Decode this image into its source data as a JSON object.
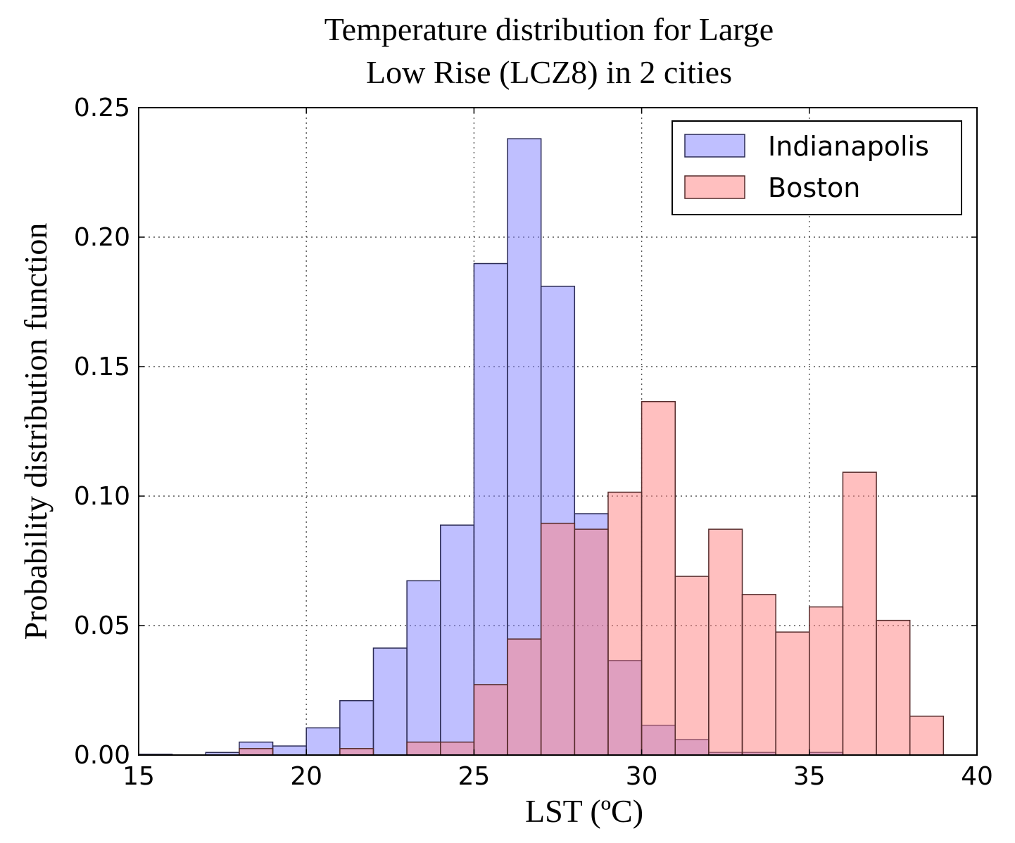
{
  "chart_data": {
    "type": "bar",
    "title_lines": [
      "Temperature distribution for Large",
      "Low Rise (LCZ8) in 2 cities"
    ],
    "xlabel": "LST (ºC)",
    "ylabel": "Probability distribution function",
    "xlim": [
      15,
      40
    ],
    "ylim": [
      0,
      0.25
    ],
    "xticks": [
      15,
      20,
      25,
      30,
      35,
      40
    ],
    "xtick_labels": [
      "15",
      "20",
      "25",
      "30",
      "35",
      "40"
    ],
    "yticks": [
      0,
      0.05,
      0.1,
      0.15,
      0.2,
      0.25
    ],
    "ytick_labels": [
      "0.00",
      "0.05",
      "0.10",
      "0.15",
      "0.20",
      "0.25"
    ],
    "grid": true,
    "legend_position": "top-right",
    "bin_width": 1,
    "series": [
      {
        "name": "Indianapolis",
        "color": "#8080ff",
        "edge_color": "#2b2b55",
        "bins": [
          15,
          16,
          17,
          18,
          19,
          20,
          21,
          22,
          23,
          24,
          25,
          26,
          27,
          28,
          29,
          30,
          31,
          32,
          33,
          34,
          35,
          36,
          37,
          38
        ],
        "values": [
          0.0003,
          0,
          0.001,
          0.005,
          0.0035,
          0.0105,
          0.021,
          0.0413,
          0.0673,
          0.0888,
          0.1898,
          0.238,
          0.181,
          0.0932,
          0.0365,
          0.0115,
          0.006,
          0.001,
          0.001,
          0,
          0.001,
          0,
          0,
          0
        ]
      },
      {
        "name": "Boston",
        "color": "#ff8080",
        "edge_color": "#552b2b",
        "bins": [
          15,
          16,
          17,
          18,
          19,
          20,
          21,
          22,
          23,
          24,
          25,
          26,
          27,
          28,
          29,
          30,
          31,
          32,
          33,
          34,
          35,
          36,
          37,
          38
        ],
        "values": [
          0,
          0,
          0,
          0.0025,
          0,
          0,
          0.0025,
          0,
          0.005,
          0.005,
          0.0272,
          0.0448,
          0.0895,
          0.0872,
          0.1015,
          0.1365,
          0.069,
          0.0872,
          0.062,
          0.0475,
          0.0572,
          0.1092,
          0.052,
          0.015
        ]
      }
    ]
  }
}
